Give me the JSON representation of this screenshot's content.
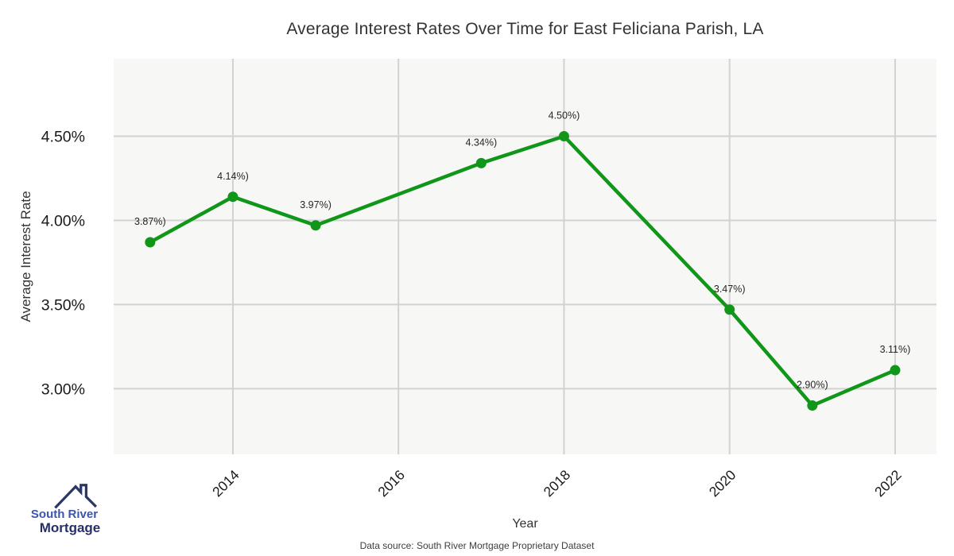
{
  "header": {
    "title": "Average Interest Rates Over Time for East Feliciana Parish, LA"
  },
  "footer": {
    "data_source": "Data source: South River Mortgage Proprietary Dataset"
  },
  "logo": {
    "line1": "South River",
    "line2": "Mortgage",
    "icon": "house-roof-icon",
    "color_primary": "#3a56a8",
    "color_secondary": "#272f6b",
    "icon_color": "#2b3766"
  },
  "chart_data": {
    "type": "line",
    "title": "Average Interest Rates Over Time for East Feliciana Parish, LA",
    "xlabel": "Year",
    "ylabel": "Average Interest Rate",
    "series_name": "Average Interest Rate",
    "x": [
      2013,
      2014,
      2015,
      2017,
      2018,
      2020,
      2021,
      2022
    ],
    "values": [
      3.87,
      4.14,
      3.97,
      4.34,
      4.5,
      3.47,
      2.9,
      3.11
    ],
    "point_labels": [
      "3.87%)",
      "4.14%)",
      "3.97%)",
      "4.34%)",
      "4.50%)",
      "3.47%)",
      "2.90%)",
      "3.11%)"
    ],
    "xlim": [
      2012.56,
      2022.5
    ],
    "ylim": [
      2.61,
      4.96
    ],
    "xticks": {
      "values": [
        2014,
        2016,
        2018,
        2020,
        2022
      ],
      "labels": [
        "2014",
        "2016",
        "2018",
        "2020",
        "2022"
      ],
      "rotation": 45
    },
    "yticks": {
      "values": [
        3.0,
        3.5,
        4.0,
        4.5
      ],
      "labels": [
        "3.00%",
        "3.50%",
        "4.00%",
        "4.50%"
      ]
    },
    "grid": true,
    "legend": "none",
    "colors": {
      "line": "#109618",
      "marker": "#109618",
      "plot_bg": "#f7f7f5",
      "gridline": "#d2d2d2",
      "label_text": "#262626",
      "tick_text": "#1a1a1a",
      "axis_title_text": "#333333"
    }
  }
}
